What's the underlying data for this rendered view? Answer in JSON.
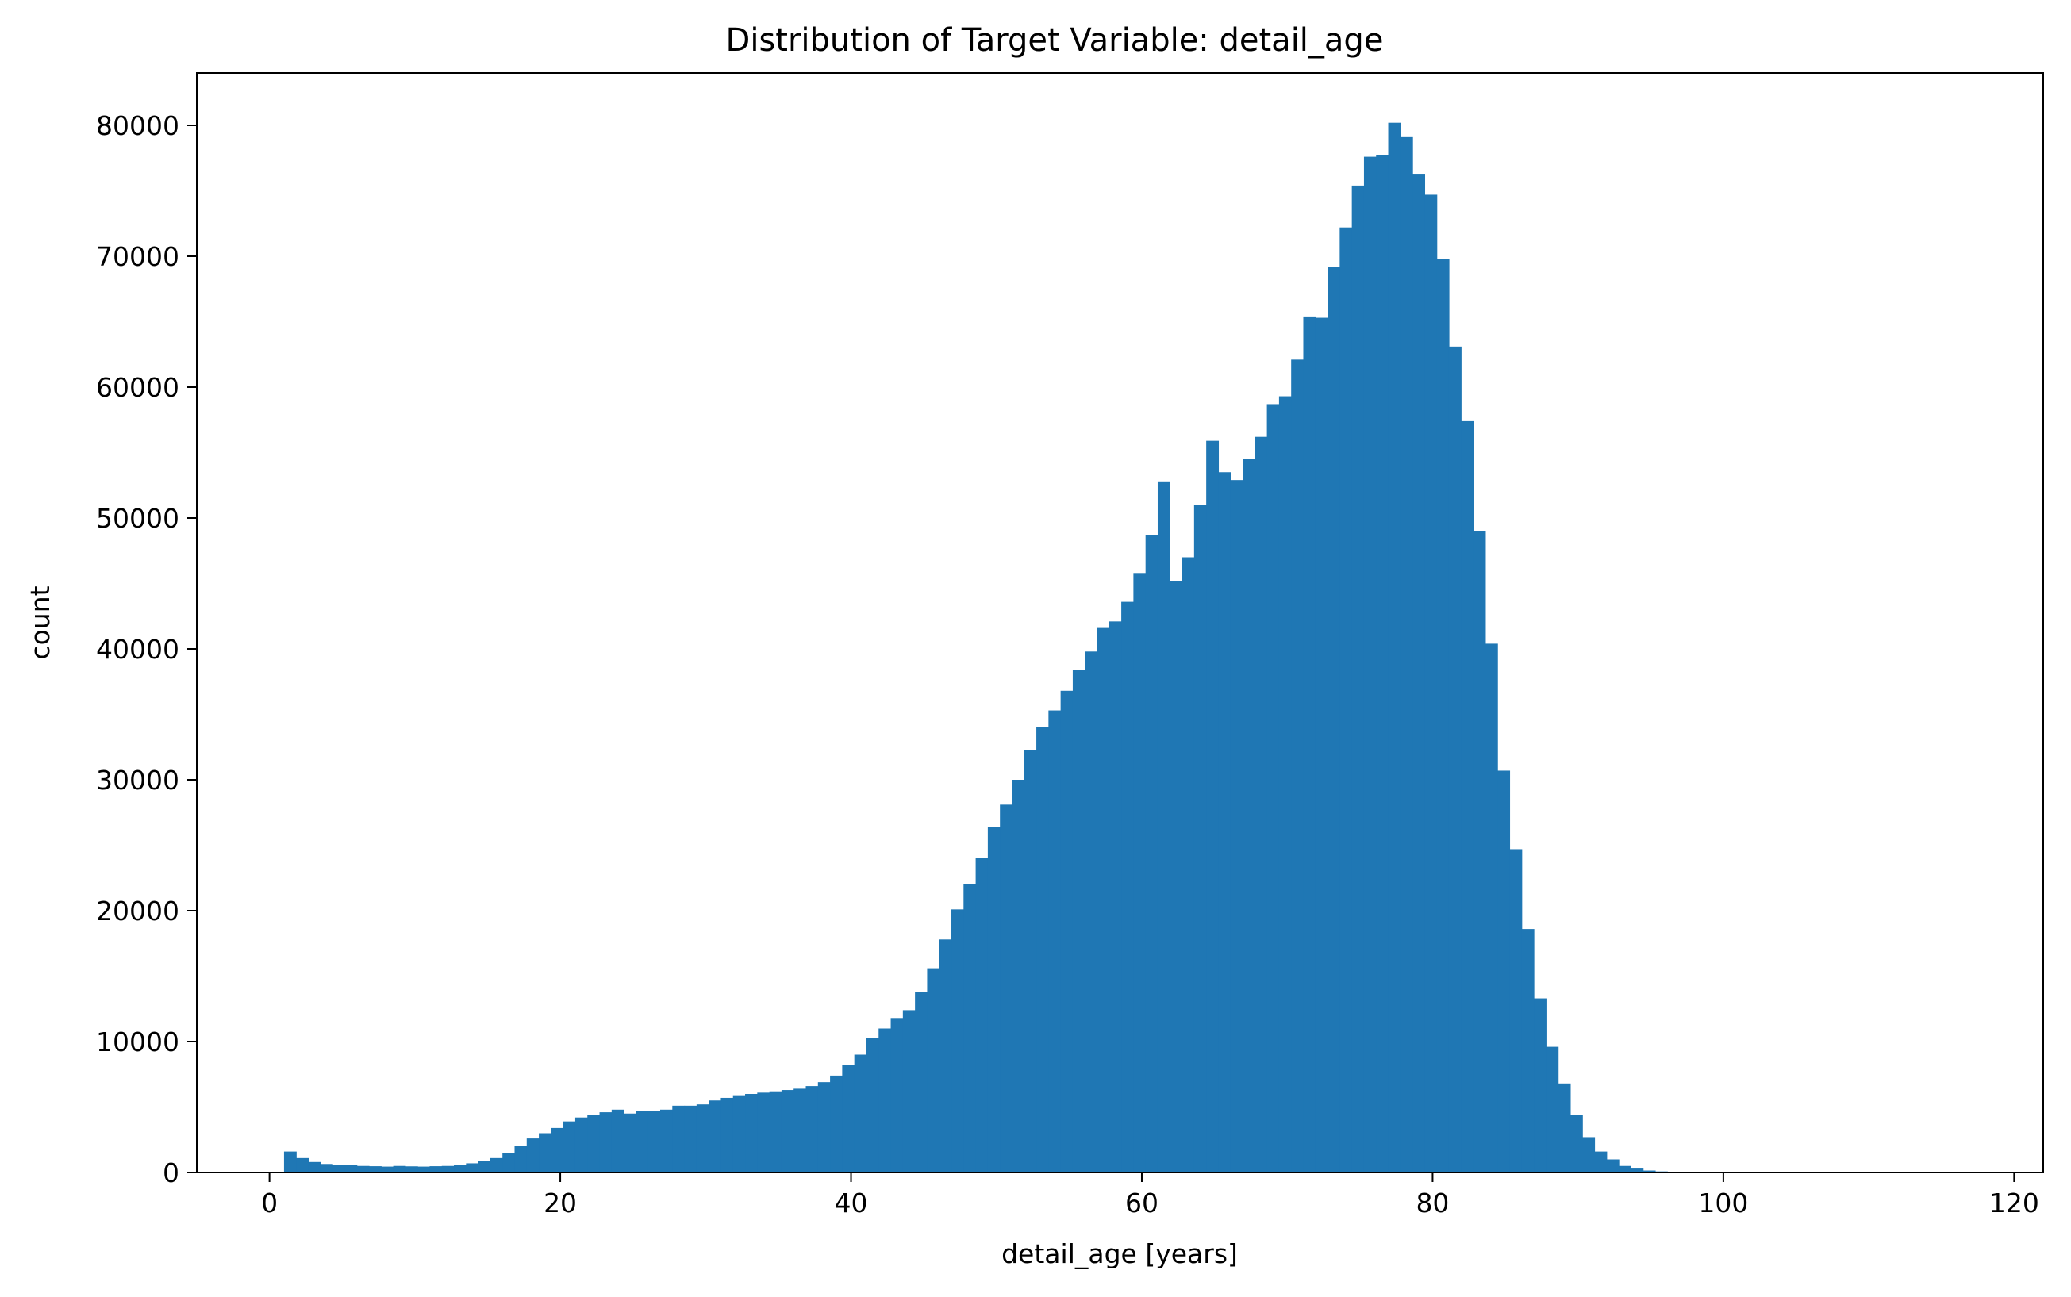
{
  "chart_data": {
    "type": "bar",
    "title": "Distribution of Target Variable: detail_age",
    "xlabel": "detail_age [years]",
    "ylabel": "count",
    "xlim": [
      -5,
      122
    ],
    "ylim": [
      0,
      84000
    ],
    "xticks": [
      0,
      20,
      40,
      60,
      80,
      100,
      120
    ],
    "yticks": [
      0,
      10000,
      20000,
      30000,
      40000,
      50000,
      60000,
      70000,
      80000
    ],
    "grid": false,
    "bin_start": 1.0,
    "bin_width": 0.8346,
    "series": [
      {
        "color": "#1f77b4",
        "values": [
          1600,
          1100,
          800,
          650,
          600,
          550,
          500,
          480,
          450,
          500,
          470,
          450,
          480,
          500,
          550,
          700,
          900,
          1100,
          1500,
          2000,
          2600,
          3000,
          3400,
          3900,
          4200,
          4400,
          4600,
          4800,
          4500,
          4700,
          4700,
          4800,
          5100,
          5100,
          5200,
          5500,
          5700,
          5900,
          6000,
          6100,
          6200,
          6300,
          6400,
          6600,
          6900,
          7400,
          8200,
          9000,
          10300,
          11000,
          11800,
          12400,
          13800,
          15600,
          17800,
          20100,
          22000,
          24000,
          26400,
          28100,
          30000,
          32300,
          34000,
          35300,
          36800,
          38400,
          39800,
          41600,
          42100,
          43600,
          45800,
          48700,
          52800,
          45200,
          47000,
          51000,
          55900,
          53500,
          52900,
          54500,
          56200,
          58700,
          59300,
          62100,
          65400,
          65300,
          69200,
          72200,
          75400,
          77600,
          77700,
          80200,
          79100,
          76300,
          74700,
          69800,
          63100,
          57400,
          49000,
          40400,
          30700,
          24700,
          18600,
          13300,
          9600,
          6800,
          4400,
          2700,
          1600,
          1000,
          500,
          300,
          150,
          80,
          50,
          30,
          20,
          10,
          5,
          3,
          2,
          2,
          1,
          1,
          1,
          1,
          1,
          1
        ]
      }
    ]
  }
}
